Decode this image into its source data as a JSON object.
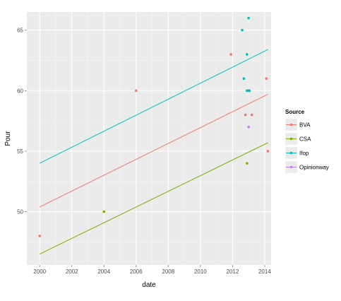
{
  "chart_data": {
    "type": "scatter",
    "xlabel": "date",
    "ylabel": "Pour",
    "xlim": [
      1999.2,
      2014.4
    ],
    "ylim": [
      45.6,
      66.5
    ],
    "x_ticks": [
      2000,
      2002,
      2004,
      2006,
      2008,
      2010,
      2012,
      2014
    ],
    "x_tick_labels": [
      "2000",
      "2002",
      "2004",
      "2006",
      "2008",
      "2010",
      "2012",
      "2014"
    ],
    "y_ticks": [
      50,
      55,
      60,
      65
    ],
    "y_tick_labels": [
      "50",
      "55",
      "60",
      "65"
    ],
    "grid": true,
    "background": "#ebebeb",
    "legend": {
      "title": "Source",
      "position": "right"
    },
    "series": [
      {
        "name": "BVA",
        "color": "#f8766d",
        "points": [
          [
            2000.0,
            48
          ],
          [
            2006.0,
            60
          ],
          [
            2011.9,
            63
          ],
          [
            2012.8,
            58
          ],
          [
            2013.2,
            58
          ],
          [
            2014.1,
            61
          ],
          [
            2014.2,
            55
          ]
        ],
        "fit": [
          [
            2000.0,
            50.4
          ],
          [
            2014.2,
            59.7
          ]
        ]
      },
      {
        "name": "CSA",
        "color": "#7cae00",
        "points": [
          [
            2004.0,
            50
          ],
          [
            2012.9,
            54
          ]
        ],
        "fit": [
          [
            2000.0,
            46.5
          ],
          [
            2014.2,
            55.7
          ]
        ]
      },
      {
        "name": "Ifop",
        "color": "#00bfc4",
        "points": [
          [
            2013.0,
            66
          ],
          [
            2012.6,
            65
          ],
          [
            2012.9,
            63
          ],
          [
            2012.7,
            61
          ],
          [
            2012.9,
            60
          ],
          [
            2013.0,
            60
          ],
          [
            2013.05,
            60
          ]
        ],
        "fit": [
          [
            2000.0,
            54.0
          ],
          [
            2014.2,
            63.4
          ]
        ]
      },
      {
        "name": "Opinionway",
        "color": "#c77cff",
        "points": [
          [
            2013.0,
            57
          ]
        ],
        "fit": []
      }
    ]
  }
}
